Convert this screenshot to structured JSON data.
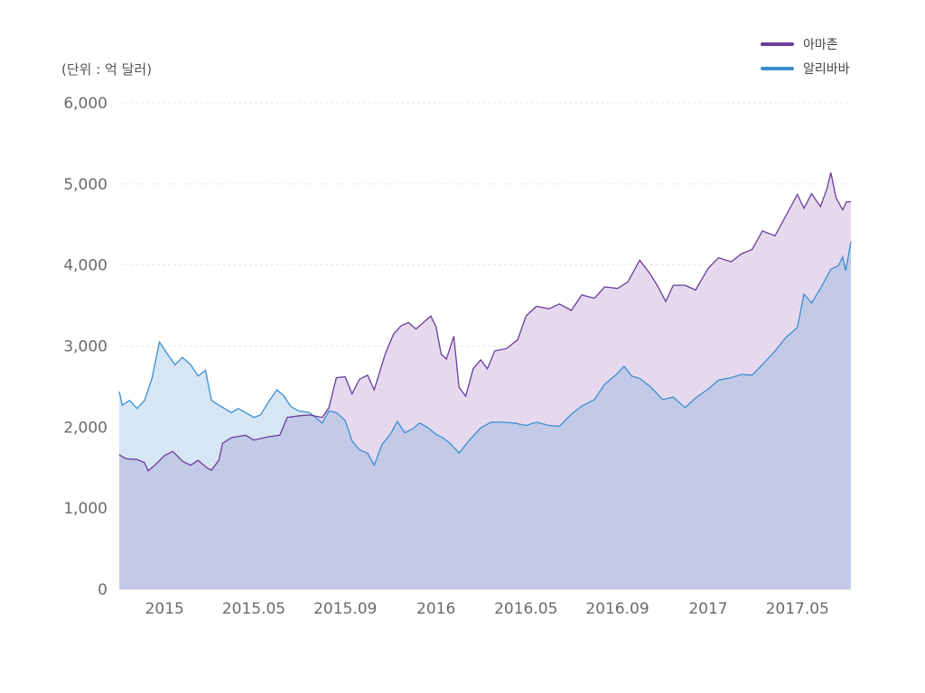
{
  "chart_data": {
    "type": "area",
    "unit_label": "(단위 : 억 달러)",
    "ylim": [
      0,
      6000
    ],
    "y_ticks": [
      0,
      1000,
      2000,
      3000,
      4000,
      5000,
      6000
    ],
    "y_tick_labels": [
      "0",
      "1,000",
      "2,000",
      "3,000",
      "4,000",
      "5,000",
      "6,000"
    ],
    "x_ticks": [
      "2015-01-01",
      "2015-05-01",
      "2015-09-01",
      "2016-01-01",
      "2016-05-01",
      "2016-09-01",
      "2017-01-01",
      "2017-05-01"
    ],
    "x_tick_labels": [
      "2015",
      "2015.05",
      "2015.09",
      "2016",
      "2016.05",
      "2016.09",
      "2017",
      "2017.05"
    ],
    "xlim": [
      "2014-11-01",
      "2017-07-12"
    ],
    "grid": true,
    "legend_position": "top-right",
    "series": [
      {
        "name": "아마존",
        "color": "#6a3d9a",
        "fill": "#e6d9ee",
        "points": [
          [
            "2014-11-01",
            1660
          ],
          [
            "2014-11-10",
            1610
          ],
          [
            "2014-11-25",
            1600
          ],
          [
            "2014-12-05",
            1560
          ],
          [
            "2014-12-10",
            1460
          ],
          [
            "2014-12-20",
            1540
          ],
          [
            "2015-01-01",
            1650
          ],
          [
            "2015-01-12",
            1700
          ],
          [
            "2015-01-25",
            1580
          ],
          [
            "2015-02-05",
            1530
          ],
          [
            "2015-02-15",
            1590
          ],
          [
            "2015-02-28",
            1490
          ],
          [
            "2015-03-05",
            1470
          ],
          [
            "2015-03-15",
            1590
          ],
          [
            "2015-03-20",
            1800
          ],
          [
            "2015-04-01",
            1870
          ],
          [
            "2015-04-20",
            1900
          ],
          [
            "2015-05-01",
            1840
          ],
          [
            "2015-05-20",
            1880
          ],
          [
            "2015-06-05",
            1900
          ],
          [
            "2015-06-15",
            2120
          ],
          [
            "2015-07-01",
            2140
          ],
          [
            "2015-07-15",
            2150
          ],
          [
            "2015-08-01",
            2120
          ],
          [
            "2015-08-10",
            2240
          ],
          [
            "2015-08-20",
            2610
          ],
          [
            "2015-09-01",
            2620
          ],
          [
            "2015-09-10",
            2410
          ],
          [
            "2015-09-20",
            2590
          ],
          [
            "2015-10-01",
            2640
          ],
          [
            "2015-10-10",
            2460
          ],
          [
            "2015-10-25",
            2910
          ],
          [
            "2015-11-05",
            3150
          ],
          [
            "2015-11-15",
            3250
          ],
          [
            "2015-11-25",
            3290
          ],
          [
            "2015-12-05",
            3210
          ],
          [
            "2015-12-15",
            3290
          ],
          [
            "2015-12-25",
            3370
          ],
          [
            "2016-01-01",
            3240
          ],
          [
            "2016-01-08",
            2900
          ],
          [
            "2016-01-15",
            2840
          ],
          [
            "2016-01-25",
            3120
          ],
          [
            "2016-02-01",
            2490
          ],
          [
            "2016-02-10",
            2380
          ],
          [
            "2016-02-20",
            2720
          ],
          [
            "2016-03-01",
            2830
          ],
          [
            "2016-03-10",
            2720
          ],
          [
            "2016-03-20",
            2940
          ],
          [
            "2016-04-05",
            2970
          ],
          [
            "2016-04-20",
            3080
          ],
          [
            "2016-05-01",
            3370
          ],
          [
            "2016-05-15",
            3490
          ],
          [
            "2016-06-01",
            3460
          ],
          [
            "2016-06-15",
            3520
          ],
          [
            "2016-07-01",
            3440
          ],
          [
            "2016-07-15",
            3630
          ],
          [
            "2016-08-01",
            3590
          ],
          [
            "2016-08-15",
            3730
          ],
          [
            "2016-09-01",
            3710
          ],
          [
            "2016-09-15",
            3790
          ],
          [
            "2016-10-01",
            4060
          ],
          [
            "2016-10-15",
            3890
          ],
          [
            "2016-10-25",
            3740
          ],
          [
            "2016-11-05",
            3550
          ],
          [
            "2016-11-15",
            3750
          ],
          [
            "2016-12-01",
            3750
          ],
          [
            "2016-12-15",
            3690
          ],
          [
            "2017-01-01",
            3960
          ],
          [
            "2017-01-15",
            4090
          ],
          [
            "2017-02-01",
            4040
          ],
          [
            "2017-02-15",
            4140
          ],
          [
            "2017-03-01",
            4190
          ],
          [
            "2017-03-15",
            4420
          ],
          [
            "2017-04-01",
            4360
          ],
          [
            "2017-04-15",
            4600
          ],
          [
            "2017-05-01",
            4870
          ],
          [
            "2017-05-10",
            4700
          ],
          [
            "2017-05-20",
            4880
          ],
          [
            "2017-06-01",
            4720
          ],
          [
            "2017-06-10",
            4950
          ],
          [
            "2017-06-15",
            5140
          ],
          [
            "2017-06-22",
            4830
          ],
          [
            "2017-07-01",
            4680
          ],
          [
            "2017-07-06",
            4780
          ],
          [
            "2017-07-12",
            4780
          ]
        ]
      },
      {
        "name": "알리바바",
        "color": "#3a8fd1",
        "fill": "#d6e6f4",
        "points": [
          [
            "2014-11-01",
            2440
          ],
          [
            "2014-11-05",
            2270
          ],
          [
            "2014-11-15",
            2330
          ],
          [
            "2014-11-25",
            2230
          ],
          [
            "2014-12-05",
            2330
          ],
          [
            "2014-12-15",
            2600
          ],
          [
            "2014-12-25",
            3050
          ],
          [
            "2015-01-05",
            2900
          ],
          [
            "2015-01-15",
            2770
          ],
          [
            "2015-01-25",
            2860
          ],
          [
            "2015-02-05",
            2770
          ],
          [
            "2015-02-15",
            2630
          ],
          [
            "2015-02-25",
            2700
          ],
          [
            "2015-03-05",
            2330
          ],
          [
            "2015-03-15",
            2270
          ],
          [
            "2015-04-01",
            2180
          ],
          [
            "2015-04-10",
            2230
          ],
          [
            "2015-04-20",
            2180
          ],
          [
            "2015-05-01",
            2120
          ],
          [
            "2015-05-10",
            2150
          ],
          [
            "2015-05-20",
            2300
          ],
          [
            "2015-06-01",
            2460
          ],
          [
            "2015-06-10",
            2390
          ],
          [
            "2015-06-20",
            2250
          ],
          [
            "2015-07-01",
            2200
          ],
          [
            "2015-07-15",
            2180
          ],
          [
            "2015-08-01",
            2050
          ],
          [
            "2015-08-10",
            2200
          ],
          [
            "2015-08-20",
            2180
          ],
          [
            "2015-09-01",
            2080
          ],
          [
            "2015-09-10",
            1830
          ],
          [
            "2015-09-20",
            1720
          ],
          [
            "2015-10-01",
            1680
          ],
          [
            "2015-10-10",
            1530
          ],
          [
            "2015-10-20",
            1780
          ],
          [
            "2015-11-01",
            1920
          ],
          [
            "2015-11-10",
            2070
          ],
          [
            "2015-11-20",
            1930
          ],
          [
            "2015-12-01",
            1980
          ],
          [
            "2015-12-10",
            2050
          ],
          [
            "2015-12-20",
            2000
          ],
          [
            "2016-01-01",
            1910
          ],
          [
            "2016-01-10",
            1870
          ],
          [
            "2016-01-20",
            1800
          ],
          [
            "2016-02-01",
            1680
          ],
          [
            "2016-02-15",
            1840
          ],
          [
            "2016-03-01",
            1990
          ],
          [
            "2016-03-15",
            2060
          ],
          [
            "2016-04-01",
            2060
          ],
          [
            "2016-04-15",
            2050
          ],
          [
            "2016-05-01",
            2020
          ],
          [
            "2016-05-15",
            2060
          ],
          [
            "2016-06-01",
            2020
          ],
          [
            "2016-06-15",
            2010
          ],
          [
            "2016-07-01",
            2160
          ],
          [
            "2016-07-15",
            2260
          ],
          [
            "2016-08-01",
            2340
          ],
          [
            "2016-08-15",
            2530
          ],
          [
            "2016-09-01",
            2660
          ],
          [
            "2016-09-10",
            2750
          ],
          [
            "2016-09-20",
            2630
          ],
          [
            "2016-10-01",
            2600
          ],
          [
            "2016-10-15",
            2500
          ],
          [
            "2016-11-01",
            2340
          ],
          [
            "2016-11-15",
            2370
          ],
          [
            "2016-12-01",
            2240
          ],
          [
            "2016-12-15",
            2360
          ],
          [
            "2017-01-01",
            2470
          ],
          [
            "2017-01-15",
            2580
          ],
          [
            "2017-02-01",
            2610
          ],
          [
            "2017-02-15",
            2650
          ],
          [
            "2017-03-01",
            2640
          ],
          [
            "2017-03-15",
            2770
          ],
          [
            "2017-04-01",
            2940
          ],
          [
            "2017-04-15",
            3100
          ],
          [
            "2017-05-01",
            3230
          ],
          [
            "2017-05-10",
            3640
          ],
          [
            "2017-05-20",
            3530
          ],
          [
            "2017-06-01",
            3710
          ],
          [
            "2017-06-15",
            3950
          ],
          [
            "2017-06-25",
            3990
          ],
          [
            "2017-07-01",
            4100
          ],
          [
            "2017-07-05",
            3930
          ],
          [
            "2017-07-12",
            4290
          ]
        ]
      }
    ]
  }
}
